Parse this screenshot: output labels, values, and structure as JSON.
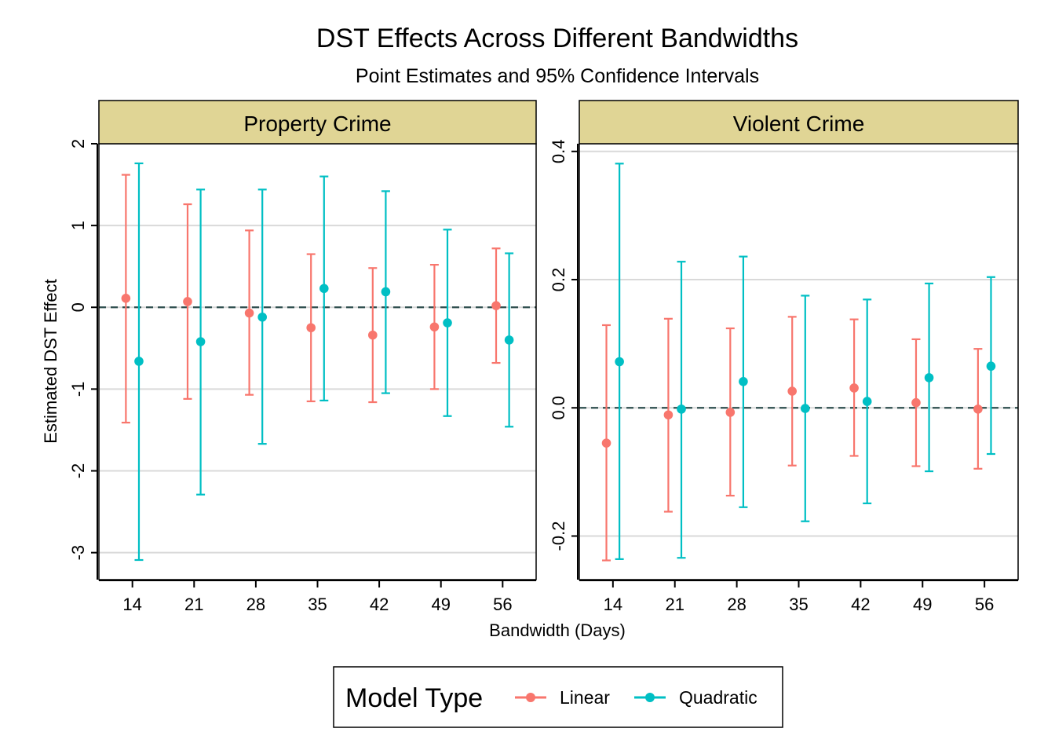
{
  "title": "DST Effects Across Different Bandwidths",
  "subtitle": "Point Estimates and 95% Confidence Intervals",
  "xlabel": "Bandwidth (Days)",
  "ylabel": "Estimated DST Effect",
  "legend": {
    "title": "Model Type",
    "items": [
      {
        "label": "Linear",
        "color": "#F8766D"
      },
      {
        "label": "Quadratic",
        "color": "#00BFC4"
      }
    ]
  },
  "colors": {
    "strip_fill": "#E0D595",
    "grid": "#D9D9D9",
    "zero_line": "#2F4F4F"
  },
  "chart_data": [
    {
      "type": "scatter",
      "panel": "Property Crime",
      "x_ticks": [
        14,
        21,
        28,
        35,
        42,
        49,
        56
      ],
      "y_ticks": [
        -3,
        -2,
        -1,
        0,
        1,
        2
      ],
      "ylim": [
        -3.33,
        2.0
      ],
      "xlim": [
        10.2,
        59.8
      ],
      "reference_line": 0,
      "series": [
        {
          "name": "Linear",
          "points": [
            {
              "x": 14,
              "est": 0.11,
              "lo": -1.41,
              "hi": 1.62
            },
            {
              "x": 21,
              "est": 0.07,
              "lo": -1.12,
              "hi": 1.26
            },
            {
              "x": 28,
              "est": -0.07,
              "lo": -1.07,
              "hi": 0.94
            },
            {
              "x": 35,
              "est": -0.25,
              "lo": -1.15,
              "hi": 0.65
            },
            {
              "x": 42,
              "est": -0.34,
              "lo": -1.16,
              "hi": 0.48
            },
            {
              "x": 49,
              "est": -0.24,
              "lo": -1.0,
              "hi": 0.52
            },
            {
              "x": 56,
              "est": 0.02,
              "lo": -0.68,
              "hi": 0.72
            }
          ]
        },
        {
          "name": "Quadratic",
          "points": [
            {
              "x": 14,
              "est": -0.66,
              "lo": -3.09,
              "hi": 1.76
            },
            {
              "x": 21,
              "est": -0.42,
              "lo": -2.29,
              "hi": 1.44
            },
            {
              "x": 28,
              "est": -0.12,
              "lo": -1.67,
              "hi": 1.44
            },
            {
              "x": 35,
              "est": 0.23,
              "lo": -1.14,
              "hi": 1.6
            },
            {
              "x": 42,
              "est": 0.19,
              "lo": -1.05,
              "hi": 1.42
            },
            {
              "x": 49,
              "est": -0.19,
              "lo": -1.33,
              "hi": 0.95
            },
            {
              "x": 56,
              "est": -0.4,
              "lo": -1.46,
              "hi": 0.66
            }
          ]
        }
      ]
    },
    {
      "type": "scatter",
      "panel": "Violent Crime",
      "x_ticks": [
        14,
        21,
        28,
        35,
        42,
        49,
        56
      ],
      "y_ticks": [
        -0.2,
        0.0,
        0.2,
        0.4
      ],
      "y_tick_labels": [
        "-0.2",
        "0.0",
        "0.2",
        "0.4"
      ],
      "ylim": [
        -0.268,
        0.412
      ],
      "xlim": [
        10.2,
        59.8
      ],
      "reference_line": 0,
      "series": [
        {
          "name": "Linear",
          "points": [
            {
              "x": 14,
              "est": -0.055,
              "lo": -0.238,
              "hi": 0.129
            },
            {
              "x": 21,
              "est": -0.011,
              "lo": -0.162,
              "hi": 0.139
            },
            {
              "x": 28,
              "est": -0.007,
              "lo": -0.137,
              "hi": 0.124
            },
            {
              "x": 35,
              "est": 0.026,
              "lo": -0.09,
              "hi": 0.142
            },
            {
              "x": 42,
              "est": 0.031,
              "lo": -0.075,
              "hi": 0.138
            },
            {
              "x": 49,
              "est": 0.008,
              "lo": -0.091,
              "hi": 0.107
            },
            {
              "x": 56,
              "est": -0.002,
              "lo": -0.095,
              "hi": 0.092
            }
          ]
        },
        {
          "name": "Quadratic",
          "points": [
            {
              "x": 14,
              "est": 0.072,
              "lo": -0.236,
              "hi": 0.381
            },
            {
              "x": 21,
              "est": -0.002,
              "lo": -0.234,
              "hi": 0.228
            },
            {
              "x": 28,
              "est": 0.041,
              "lo": -0.155,
              "hi": 0.236
            },
            {
              "x": 35,
              "est": -0.001,
              "lo": -0.177,
              "hi": 0.175
            },
            {
              "x": 42,
              "est": 0.01,
              "lo": -0.149,
              "hi": 0.169
            },
            {
              "x": 49,
              "est": 0.047,
              "lo": -0.099,
              "hi": 0.194
            },
            {
              "x": 56,
              "est": 0.065,
              "lo": -0.072,
              "hi": 0.204
            }
          ]
        }
      ]
    }
  ]
}
